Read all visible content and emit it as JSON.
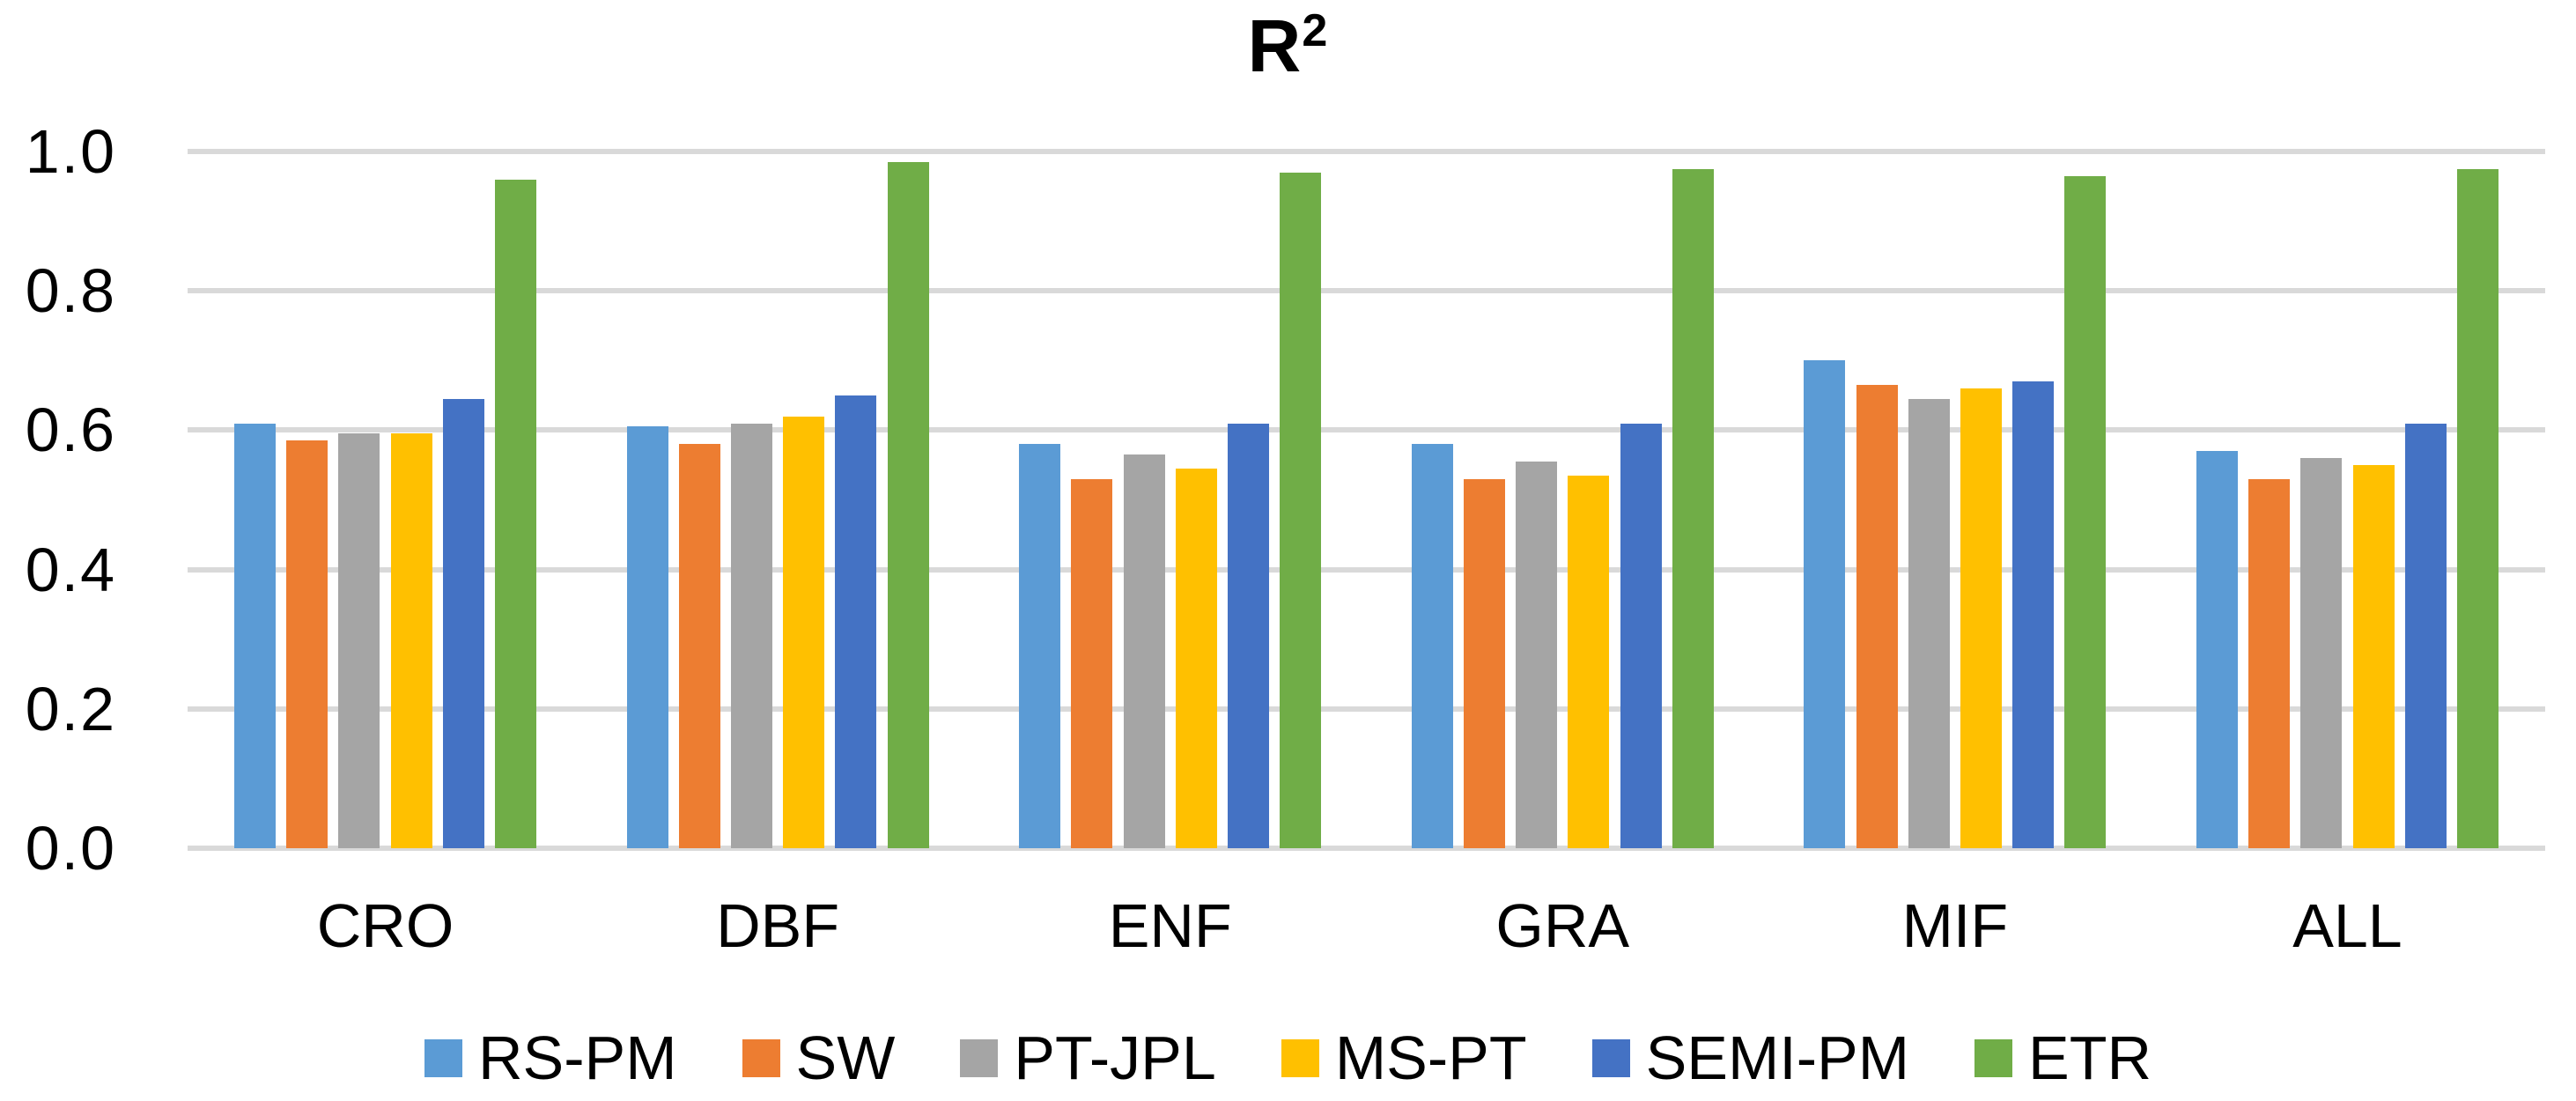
{
  "title": {
    "text": "R",
    "sup": "2"
  },
  "colors": {
    "background": "#FFFFFF",
    "gridline": "#D9D9D9",
    "text": "#000000"
  },
  "chart_data": {
    "type": "bar",
    "title": "R²",
    "xlabel": "",
    "ylabel": "",
    "ylim": [
      0.0,
      1.0
    ],
    "ytick_step": 0.2,
    "yticks": [
      "1.0",
      "0.8",
      "0.6",
      "0.4",
      "0.2",
      "0.0"
    ],
    "grid": true,
    "legend_position": "bottom",
    "categories": [
      "CRO",
      "DBF",
      "ENF",
      "GRA",
      "MIF",
      "ALL"
    ],
    "series": [
      {
        "name": "RS-PM",
        "color": "#5B9BD5",
        "values": [
          0.61,
          0.605,
          0.58,
          0.58,
          0.7,
          0.57
        ]
      },
      {
        "name": "SW",
        "color": "#ED7D31",
        "values": [
          0.585,
          0.58,
          0.53,
          0.53,
          0.665,
          0.53
        ]
      },
      {
        "name": "PT-JPL",
        "color": "#A5A5A5",
        "values": [
          0.595,
          0.61,
          0.565,
          0.555,
          0.645,
          0.56
        ]
      },
      {
        "name": "MS-PT",
        "color": "#FFC000",
        "values": [
          0.595,
          0.62,
          0.545,
          0.535,
          0.66,
          0.55
        ]
      },
      {
        "name": "SEMI-PM",
        "color": "#4472C4",
        "values": [
          0.645,
          0.65,
          0.61,
          0.61,
          0.67,
          0.61
        ]
      },
      {
        "name": "ETR",
        "color": "#70AD47",
        "values": [
          0.96,
          0.985,
          0.97,
          0.975,
          0.965,
          0.975
        ]
      }
    ]
  }
}
